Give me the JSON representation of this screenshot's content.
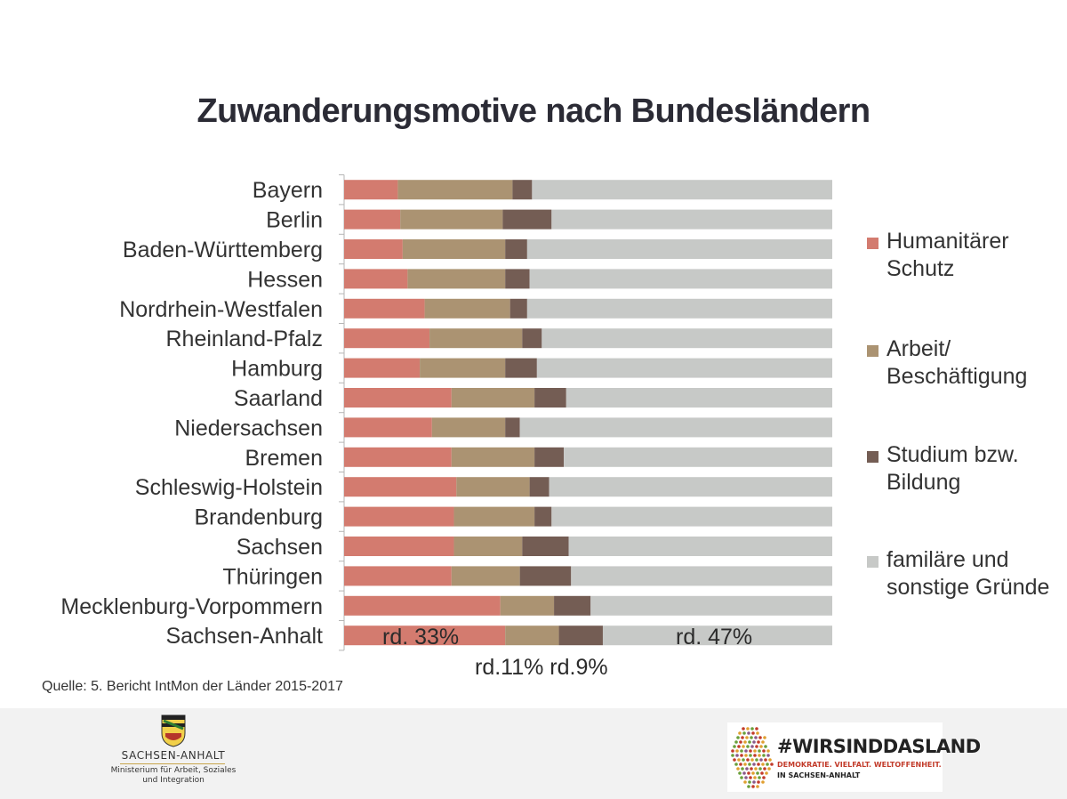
{
  "title": "Zuwanderungsmotive nach Bundesländern",
  "chart_data": {
    "type": "bar",
    "orientation": "horizontal",
    "stacked": true,
    "percent": true,
    "title": "Zuwanderungsmotive nach Bundesländern",
    "xlim": [
      0,
      100
    ],
    "categories": [
      "Bayern",
      "Berlin",
      "Baden-Württemberg",
      "Hessen",
      "Nordrhein-Westfalen",
      "Rheinland-Pfalz",
      "Hamburg",
      "Saarland",
      "Niedersachsen",
      "Bremen",
      "Schleswig-Holstein",
      "Brandenburg",
      "Sachsen",
      "Thüringen",
      "Mecklenburg-Vorpommern",
      "Sachsen-Anhalt"
    ],
    "series": [
      {
        "name": "Humanitärer Schutz",
        "color": "#d37b6f",
        "values": [
          11,
          11.5,
          12,
          13,
          16.5,
          17.5,
          15.5,
          22,
          18,
          22,
          23,
          22.5,
          22.5,
          22,
          32,
          33
        ]
      },
      {
        "name": "Arbeit/ Beschäftigung",
        "color": "#ab9372",
        "values": [
          23.5,
          21,
          21,
          20,
          17.5,
          19,
          17.5,
          17,
          15,
          17,
          15,
          16.5,
          14,
          14,
          11,
          11
        ]
      },
      {
        "name": "Studium bzw. Bildung",
        "color": "#745d54",
        "values": [
          4,
          10,
          4.5,
          5,
          3.5,
          4,
          6.5,
          6.5,
          3,
          6,
          4,
          3.5,
          9.5,
          10.5,
          7.5,
          9
        ]
      },
      {
        "name": "familäre und sonstige Gründe",
        "color": "#c7c9c7",
        "values": [
          61.5,
          57.5,
          62.5,
          62,
          62.5,
          59.5,
          60.5,
          54.5,
          64,
          55,
          58,
          57.5,
          54,
          53.5,
          49.5,
          47
        ]
      }
    ],
    "annotations": [
      "rd. 33%",
      "rd. 47%",
      "rd.11% rd.9%"
    ]
  },
  "legend": [
    {
      "label": "Humanitärer Schutz",
      "color": "#d37b6f"
    },
    {
      "label": "Arbeit/ Beschäftigung",
      "color": "#ab9372"
    },
    {
      "label": "Studium bzw. Bildung",
      "color": "#745d54"
    },
    {
      "label": "familäre und sonstige Gründe",
      "color": "#c7c9c7"
    }
  ],
  "source": "Quelle: 5. Bericht IntMon der Länder 2015-2017",
  "footer": {
    "left_logo": {
      "state": "SACHSEN-ANHALT",
      "ministry": "Ministerium für Arbeit, Soziales und Integration"
    },
    "right_logo": {
      "hashtag": "#WIRSINDDASLAND",
      "slogan": "DEMOKRATIE. VIELFALT. WELTOFFENHEIT.",
      "region": "IN SACHSEN-ANHALT"
    }
  }
}
